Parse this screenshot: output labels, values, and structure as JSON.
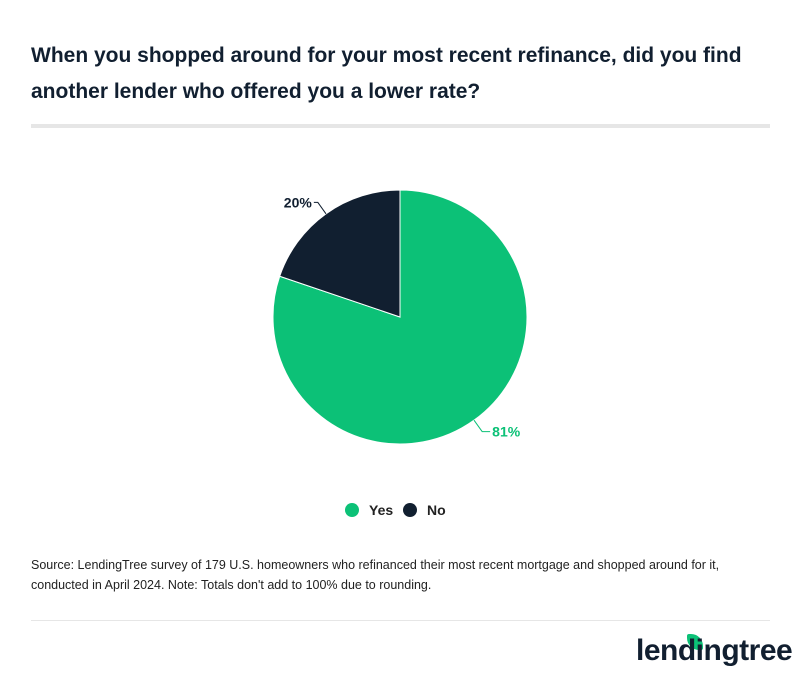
{
  "title": "When you shopped around for your most recent refinance, did you find another lender who offered you a lower rate?",
  "source": "Source: LendingTree survey of 179 U.S. homeowners who refinanced their most recent mortgage and shopped around for it, conducted in April 2024. Note: Totals don't add to 100% due to rounding.",
  "logo": "lendingtree",
  "chart_data": {
    "type": "pie",
    "categories": [
      "Yes",
      "No"
    ],
    "values": [
      81,
      20
    ],
    "labels": [
      "81%",
      "20%"
    ],
    "colors": [
      "#0cc177",
      "#111f30"
    ],
    "legend": "bottom"
  }
}
